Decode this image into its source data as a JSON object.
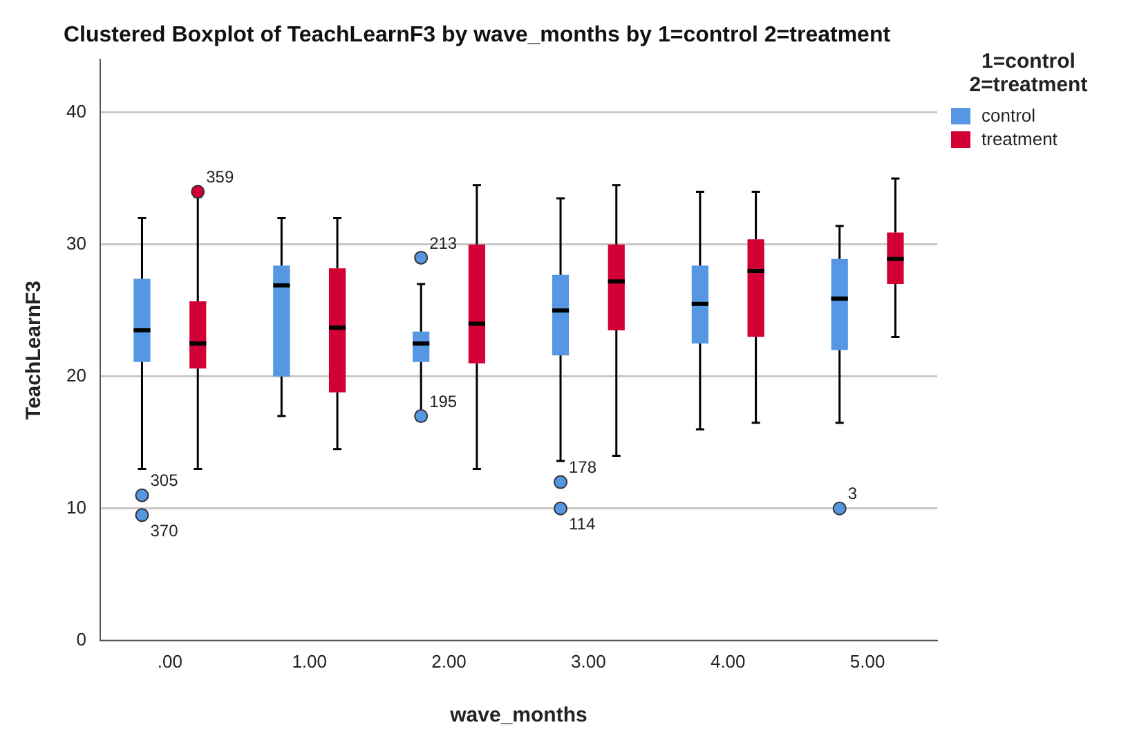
{
  "chart_data": {
    "type": "box",
    "title": "Clustered Boxplot of TeachLearnF3 by wave_months by 1=control 2=treatment",
    "xlabel": "wave_months",
    "ylabel": "TeachLearnF3",
    "legend_title": "1=control 2=treatment",
    "legend": "top right",
    "grid": "y",
    "categories": [
      ".00",
      "1.00",
      "2.00",
      "3.00",
      "4.00",
      "5.00"
    ],
    "ylim": [
      0,
      44
    ],
    "yticks": [
      0,
      10,
      20,
      30,
      40
    ],
    "series": [
      {
        "name": "control",
        "color": "#5597e2",
        "boxes": [
          {
            "low": 13,
            "q1": 21.1,
            "median": 23.5,
            "q3": 27.4,
            "high": 32,
            "outliers": [
              11,
              9.5
            ]
          },
          {
            "low": 17,
            "q1": 20,
            "median": 26.9,
            "q3": 28.4,
            "high": 32
          },
          {
            "low": 17.3,
            "q1": 21.1,
            "median": 22.5,
            "q3": 23.4,
            "high": 27,
            "outliers": [
              29,
              17
            ]
          },
          {
            "low": 13.6,
            "q1": 21.6,
            "median": 25,
            "q3": 27.7,
            "high": 33.5,
            "outliers": [
              12,
              10
            ]
          },
          {
            "low": 16,
            "q1": 22.5,
            "median": 25.5,
            "q3": 28.4,
            "high": 34
          },
          {
            "low": 16.5,
            "q1": 22,
            "median": 25.9,
            "q3": 28.9,
            "high": 31.4,
            "outliers": [
              10
            ]
          }
        ]
      },
      {
        "name": "treatment",
        "color": "#d20034",
        "boxes": [
          {
            "low": 13,
            "q1": 20.6,
            "median": 22.5,
            "q3": 25.7,
            "high": 33.6,
            "outliers": [
              34
            ]
          },
          {
            "low": 14.5,
            "q1": 18.8,
            "median": 23.7,
            "q3": 28.2,
            "high": 32
          },
          {
            "low": 13,
            "q1": 21,
            "median": 24,
            "q3": 30,
            "high": 34.5
          },
          {
            "low": 14,
            "q1": 23.5,
            "median": 27.2,
            "q3": 30,
            "high": 34.5
          },
          {
            "low": 16.5,
            "q1": 23,
            "median": 28,
            "q3": 30.4,
            "high": 34
          },
          {
            "low": 23,
            "q1": 27,
            "median": 28.9,
            "q3": 30.9,
            "high": 35
          }
        ]
      }
    ],
    "annotations": [
      "305",
      "370",
      "213",
      "195",
      "178",
      "114",
      "3",
      "359"
    ]
  }
}
